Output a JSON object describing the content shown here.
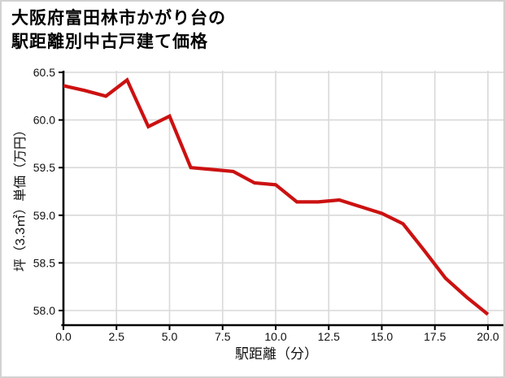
{
  "title": {
    "line1": "大阪府富田林市かがり台の",
    "line2": "駅距離別中古戸建て価格"
  },
  "chart_data": {
    "type": "line",
    "title": "大阪府富田林市かがり台の駅距離別中古戸建て価格",
    "xlabel": "駅距離（分）",
    "ylabel": "坪（3.3㎡）単価（万円）",
    "x": [
      0,
      1,
      2,
      3,
      4,
      5,
      6,
      7,
      8,
      9,
      10,
      11,
      12,
      13,
      14,
      15,
      16,
      17,
      18,
      19,
      20
    ],
    "values": [
      60.36,
      60.31,
      60.25,
      60.42,
      59.93,
      60.04,
      59.5,
      59.48,
      59.46,
      59.34,
      59.32,
      59.14,
      59.14,
      59.16,
      59.09,
      59.02,
      58.91,
      58.63,
      58.34,
      58.14,
      57.96
    ],
    "xlim": [
      0,
      20
    ],
    "ylim": [
      57.85,
      60.5
    ],
    "xticks": {
      "values": [
        0,
        2.5,
        5,
        7.5,
        10,
        12.5,
        15,
        17.5,
        20
      ],
      "labels": [
        "0.0",
        "2.5",
        "5.0",
        "7.5",
        "10.0",
        "12.5",
        "15.0",
        "17.5",
        "20.0"
      ]
    },
    "yticks": {
      "values": [
        58.0,
        58.5,
        59.0,
        59.5,
        60.0,
        60.5
      ],
      "labels": [
        "58.0",
        "58.5",
        "59.0",
        "59.5",
        "60.0",
        "60.5"
      ]
    },
    "grid": true,
    "legend_position": "none",
    "line_color": "#cc1111",
    "grid_color": "#d9d9d9",
    "axis_color": "#000000",
    "tick_label_color": "#111111"
  }
}
